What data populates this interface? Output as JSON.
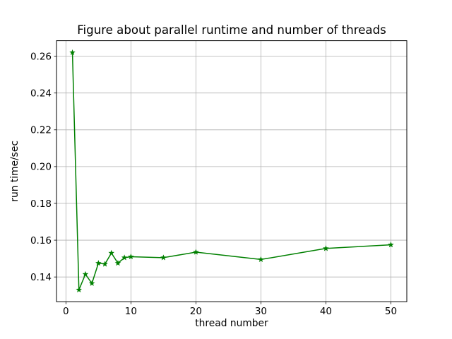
{
  "figure": {
    "title": "Figure about parallel runtime and number of threads",
    "xlabel": "thread number",
    "ylabel": "run time/sec"
  },
  "chart_data": {
    "type": "line",
    "title": "Figure about parallel runtime and number of threads",
    "xlabel": "thread number",
    "ylabel": "run time/sec",
    "x": [
      1,
      2,
      3,
      4,
      5,
      6,
      7,
      8,
      9,
      10,
      15,
      20,
      30,
      40,
      50
    ],
    "series": [
      {
        "name": "run time",
        "color": "#008000",
        "marker": "star",
        "values": [
          0.262,
          0.133,
          0.1415,
          0.1365,
          0.1475,
          0.147,
          0.153,
          0.1475,
          0.1505,
          0.151,
          0.1505,
          0.1535,
          0.1495,
          0.1555,
          0.1575
        ]
      }
    ],
    "xticks": [
      0,
      10,
      20,
      30,
      40,
      50
    ],
    "yticks": [
      0.14,
      0.16,
      0.18,
      0.2,
      0.22,
      0.24,
      0.26
    ],
    "xlim": [
      -1.45,
      52.45
    ],
    "ylim": [
      0.12655,
      0.26845
    ],
    "grid": true,
    "grid_color": "#b0b0b0",
    "spine_color": "#000000",
    "background": "#ffffff",
    "line_width": 1.5,
    "marker_size": 4.5,
    "legend": "none"
  }
}
